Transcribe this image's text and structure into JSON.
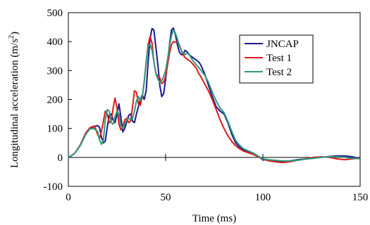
{
  "chart_data": {
    "type": "line",
    "title": "",
    "xlabel": "Time (ms)",
    "ylabel_main": "Longitudinal acceleration (m/s",
    "ylabel_sup": "2",
    "ylabel_close": ")",
    "xlim": [
      0,
      150
    ],
    "ylim": [
      -100,
      500
    ],
    "xticks": [
      0,
      50,
      100,
      150
    ],
    "yticks": [
      -100,
      0,
      100,
      200,
      300,
      400,
      500
    ],
    "xtick_labels": [
      "0",
      "50",
      "100",
      "150"
    ],
    "ytick_labels": [
      "-100",
      "0",
      "100",
      "200",
      "300",
      "400",
      "500"
    ],
    "grid": false,
    "legend_position": "top-right",
    "series": [
      {
        "name": "JNCAP",
        "color": "#1a1a8c",
        "points": [
          [
            0,
            0
          ],
          [
            3,
            12
          ],
          [
            6,
            40
          ],
          [
            9,
            82
          ],
          [
            11,
            100
          ],
          [
            13,
            106
          ],
          [
            15,
            110
          ],
          [
            16,
            104
          ],
          [
            17,
            70
          ],
          [
            18,
            50
          ],
          [
            19,
            56
          ],
          [
            20,
            105
          ],
          [
            21,
            145
          ],
          [
            22,
            150
          ],
          [
            23,
            130
          ],
          [
            24,
            120
          ],
          [
            25,
            150
          ],
          [
            26,
            185
          ],
          [
            27,
            140
          ],
          [
            28,
            88
          ],
          [
            29,
            100
          ],
          [
            31,
            145
          ],
          [
            32,
            150
          ],
          [
            33,
            125
          ],
          [
            34,
            120
          ],
          [
            35,
            150
          ],
          [
            37,
            200
          ],
          [
            38,
            215
          ],
          [
            39,
            200
          ],
          [
            40,
            230
          ],
          [
            41,
            330
          ],
          [
            42,
            410
          ],
          [
            43,
            445
          ],
          [
            44,
            440
          ],
          [
            45,
            380
          ],
          [
            46,
            320
          ],
          [
            47,
            250
          ],
          [
            48,
            210
          ],
          [
            49,
            220
          ],
          [
            50,
            270
          ],
          [
            51,
            330
          ],
          [
            52,
            390
          ],
          [
            53,
            440
          ],
          [
            54,
            447
          ],
          [
            55,
            425
          ],
          [
            56,
            390
          ],
          [
            57,
            365
          ],
          [
            58,
            355
          ],
          [
            59,
            355
          ],
          [
            60,
            370
          ],
          [
            61,
            365
          ],
          [
            62,
            355
          ],
          [
            63,
            350
          ],
          [
            64,
            345
          ],
          [
            65,
            340
          ],
          [
            66,
            335
          ],
          [
            67,
            330
          ],
          [
            68,
            320
          ],
          [
            70,
            290
          ],
          [
            72,
            250
          ],
          [
            74,
            210
          ],
          [
            76,
            175
          ],
          [
            78,
            160
          ],
          [
            80,
            150
          ],
          [
            82,
            120
          ],
          [
            84,
            80
          ],
          [
            86,
            50
          ],
          [
            88,
            35
          ],
          [
            90,
            25
          ],
          [
            95,
            15
          ],
          [
            100,
            -8
          ],
          [
            103,
            -10
          ],
          [
            106,
            -12
          ],
          [
            110,
            -15
          ],
          [
            114,
            -12
          ],
          [
            118,
            -8
          ],
          [
            122,
            -5
          ],
          [
            126,
            -3
          ],
          [
            130,
            0
          ],
          [
            134,
            3
          ],
          [
            138,
            5
          ],
          [
            142,
            5
          ],
          [
            146,
            2
          ],
          [
            150,
            -5
          ]
        ]
      },
      {
        "name": "Test 1",
        "color": "#e01a1a",
        "points": [
          [
            0,
            0
          ],
          [
            3,
            12
          ],
          [
            6,
            42
          ],
          [
            9,
            85
          ],
          [
            11,
            102
          ],
          [
            13,
            108
          ],
          [
            14,
            100
          ],
          [
            15,
            80
          ],
          [
            16,
            65
          ],
          [
            17,
            90
          ],
          [
            18,
            125
          ],
          [
            19,
            160
          ],
          [
            20,
            150
          ],
          [
            21,
            120
          ],
          [
            22,
            125
          ],
          [
            23,
            170
          ],
          [
            24,
            205
          ],
          [
            25,
            170
          ],
          [
            26,
            115
          ],
          [
            27,
            95
          ],
          [
            28,
            105
          ],
          [
            29,
            130
          ],
          [
            30,
            135
          ],
          [
            31,
            120
          ],
          [
            32,
            125
          ],
          [
            33,
            175
          ],
          [
            34,
            230
          ],
          [
            35,
            225
          ],
          [
            36,
            185
          ],
          [
            37,
            180
          ],
          [
            38,
            210
          ],
          [
            39,
            260
          ],
          [
            40,
            330
          ],
          [
            41,
            390
          ],
          [
            42,
            418
          ],
          [
            43,
            395
          ],
          [
            44,
            330
          ],
          [
            45,
            290
          ],
          [
            46,
            280
          ],
          [
            47,
            275
          ],
          [
            48,
            255
          ],
          [
            49,
            260
          ],
          [
            50,
            280
          ],
          [
            51,
            320
          ],
          [
            52,
            360
          ],
          [
            53,
            390
          ],
          [
            54,
            400
          ],
          [
            55,
            398
          ],
          [
            56,
            400
          ],
          [
            57,
            390
          ],
          [
            58,
            370
          ],
          [
            59,
            355
          ],
          [
            60,
            345
          ],
          [
            61,
            340
          ],
          [
            62,
            335
          ],
          [
            63,
            330
          ],
          [
            64,
            322
          ],
          [
            65,
            315
          ],
          [
            66,
            305
          ],
          [
            67,
            290
          ],
          [
            68,
            280
          ],
          [
            70,
            255
          ],
          [
            72,
            230
          ],
          [
            74,
            200
          ],
          [
            76,
            165
          ],
          [
            78,
            130
          ],
          [
            80,
            100
          ],
          [
            82,
            75
          ],
          [
            84,
            55
          ],
          [
            86,
            40
          ],
          [
            88,
            30
          ],
          [
            90,
            22
          ],
          [
            95,
            10
          ],
          [
            100,
            -5
          ],
          [
            103,
            -12
          ],
          [
            106,
            -15
          ],
          [
            110,
            -18
          ],
          [
            114,
            -15
          ],
          [
            118,
            -10
          ],
          [
            122,
            -5
          ],
          [
            126,
            0
          ],
          [
            130,
            2
          ],
          [
            134,
            0
          ],
          [
            138,
            -5
          ],
          [
            142,
            -8
          ],
          [
            146,
            -5
          ],
          [
            150,
            -3
          ]
        ]
      },
      {
        "name": "Test 2",
        "color": "#2f9a80",
        "points": [
          [
            0,
            0
          ],
          [
            3,
            12
          ],
          [
            6,
            40
          ],
          [
            9,
            80
          ],
          [
            11,
            98
          ],
          [
            13,
            100
          ],
          [
            15,
            90
          ],
          [
            16,
            60
          ],
          [
            17,
            45
          ],
          [
            18,
            60
          ],
          [
            19,
            130
          ],
          [
            20,
            165
          ],
          [
            21,
            160
          ],
          [
            22,
            120
          ],
          [
            23,
            115
          ],
          [
            24,
            140
          ],
          [
            25,
            160
          ],
          [
            26,
            150
          ],
          [
            27,
            110
          ],
          [
            28,
            100
          ],
          [
            29,
            115
          ],
          [
            30,
            130
          ],
          [
            31,
            135
          ],
          [
            32,
            130
          ],
          [
            33,
            135
          ],
          [
            34,
            160
          ],
          [
            35,
            195
          ],
          [
            36,
            210
          ],
          [
            37,
            195
          ],
          [
            38,
            210
          ],
          [
            39,
            260
          ],
          [
            40,
            330
          ],
          [
            41,
            385
          ],
          [
            42,
            390
          ],
          [
            43,
            370
          ],
          [
            44,
            330
          ],
          [
            45,
            290
          ],
          [
            46,
            270
          ],
          [
            47,
            260
          ],
          [
            48,
            265
          ],
          [
            49,
            280
          ],
          [
            50,
            300
          ],
          [
            51,
            340
          ],
          [
            52,
            385
          ],
          [
            53,
            420
          ],
          [
            54,
            440
          ],
          [
            55,
            430
          ],
          [
            56,
            410
          ],
          [
            57,
            385
          ],
          [
            58,
            370
          ],
          [
            59,
            360
          ],
          [
            60,
            355
          ],
          [
            61,
            360
          ],
          [
            62,
            358
          ],
          [
            63,
            345
          ],
          [
            64,
            335
          ],
          [
            65,
            325
          ],
          [
            66,
            318
          ],
          [
            67,
            310
          ],
          [
            68,
            302
          ],
          [
            70,
            285
          ],
          [
            72,
            260
          ],
          [
            74,
            225
          ],
          [
            76,
            195
          ],
          [
            78,
            170
          ],
          [
            80,
            155
          ],
          [
            82,
            125
          ],
          [
            84,
            90
          ],
          [
            86,
            58
          ],
          [
            88,
            42
          ],
          [
            90,
            30
          ],
          [
            95,
            15
          ],
          [
            100,
            -5
          ],
          [
            103,
            -8
          ],
          [
            106,
            -10
          ],
          [
            110,
            -12
          ],
          [
            114,
            -12
          ],
          [
            118,
            -10
          ],
          [
            122,
            -6
          ],
          [
            126,
            -3
          ],
          [
            130,
            0
          ],
          [
            134,
            2
          ],
          [
            138,
            2
          ],
          [
            142,
            0
          ],
          [
            146,
            -3
          ],
          [
            150,
            -5
          ]
        ]
      }
    ]
  }
}
